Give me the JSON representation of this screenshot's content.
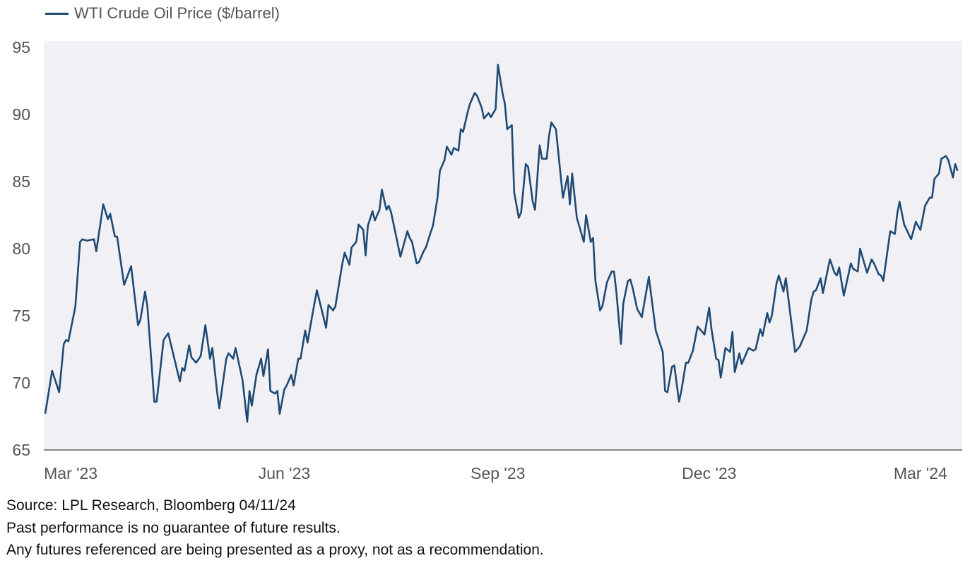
{
  "chart_data": {
    "type": "line",
    "title": "",
    "xlabel": "",
    "ylabel": "",
    "x_unit": "days from start of Mar 2023",
    "xlim": [
      -11.6,
      384
    ],
    "ylim": [
      65,
      95
    ],
    "grid": false,
    "legend_position": "top-left",
    "y_ticks": [
      95,
      90,
      85,
      80,
      75,
      70,
      65
    ],
    "x_ticks": [
      {
        "value": 0,
        "label": "Mar '23"
      },
      {
        "value": 92,
        "label": "Jun '23"
      },
      {
        "value": 184,
        "label": "Sep '23"
      },
      {
        "value": 275,
        "label": "Dec '23"
      },
      {
        "value": 366,
        "label": "Mar '24"
      }
    ],
    "series": [
      {
        "name": "WTI Crude Oil Price ($/barrel)",
        "color": "#1f4a73",
        "x": [
          -11,
          -8,
          -5,
          -3,
          -2,
          -1,
          2,
          4,
          5,
          7,
          10,
          11,
          14,
          16,
          17,
          19,
          20,
          23,
          26,
          29,
          30,
          32,
          33,
          36,
          37,
          40,
          42,
          47,
          48,
          49,
          51,
          52,
          54,
          56,
          58,
          60,
          61,
          63,
          64,
          67,
          68,
          70,
          71,
          74,
          76,
          77,
          78,
          80,
          82,
          83,
          85,
          86,
          88,
          89,
          90,
          92,
          93,
          95,
          96,
          98,
          99,
          101,
          102,
          104,
          106,
          110,
          111,
          113,
          114,
          117,
          118,
          120,
          121,
          123,
          124,
          126,
          127,
          128,
          130,
          131,
          133,
          134,
          136,
          137,
          138,
          142,
          145,
          146,
          147,
          149,
          150,
          152,
          153,
          155,
          156,
          158,
          159,
          161,
          162,
          164,
          165,
          167,
          168,
          169,
          171,
          172,
          174,
          175,
          177,
          178,
          180,
          181,
          183,
          184,
          186,
          187,
          188,
          190,
          191,
          193,
          194,
          196,
          197,
          199,
          200,
          202,
          203,
          205,
          206,
          207,
          209,
          211,
          212,
          214,
          215,
          216,
          218,
          221,
          222,
          224,
          225,
          226,
          228,
          229,
          231,
          233,
          234,
          235,
          237,
          238,
          240,
          241,
          242,
          244,
          246,
          249,
          252,
          255,
          256,
          257,
          259,
          260,
          262,
          263,
          265,
          266,
          268,
          270,
          273,
          275,
          276,
          278,
          279,
          280,
          282,
          284,
          285,
          286,
          288,
          289,
          292,
          294,
          295,
          297,
          298,
          300,
          301,
          302,
          304,
          305,
          307,
          308,
          312,
          314,
          317,
          319,
          320,
          321,
          323,
          324,
          327,
          329,
          330,
          331,
          333,
          336,
          337,
          339,
          340,
          342,
          343,
          345,
          346,
          348,
          349,
          350,
          353,
          355,
          356,
          357,
          359,
          362,
          364,
          366,
          368,
          370,
          371,
          372,
          374,
          375,
          377,
          378,
          380,
          381,
          382
        ],
        "values": [
          67.7,
          70.9,
          69.3,
          72.9,
          73.2,
          73.1,
          75.7,
          80.5,
          80.7,
          80.6,
          80.7,
          79.8,
          83.3,
          82.2,
          82.6,
          80.9,
          80.9,
          77.3,
          78.7,
          74.3,
          74.7,
          76.8,
          75.7,
          68.6,
          68.6,
          73.2,
          73.7,
          70.1,
          71.1,
          70.9,
          72.8,
          71.9,
          71.5,
          72.0,
          74.3,
          71.8,
          72.6,
          69.4,
          68.1,
          71.8,
          72.2,
          71.8,
          72.6,
          70.2,
          67.1,
          69.4,
          68.3,
          70.6,
          71.8,
          70.5,
          72.5,
          69.4,
          69.2,
          69.4,
          67.7,
          69.5,
          69.8,
          70.6,
          69.8,
          71.8,
          71.8,
          73.9,
          73.0,
          75.0,
          76.9,
          74.1,
          75.8,
          75.4,
          75.7,
          78.9,
          79.7,
          78.8,
          80.1,
          80.5,
          81.8,
          81.4,
          79.5,
          81.7,
          82.8,
          82.1,
          82.9,
          84.4,
          82.9,
          83.2,
          82.7,
          79.4,
          81.3,
          80.8,
          80.5,
          78.9,
          79.0,
          79.8,
          80.1,
          81.2,
          81.7,
          83.8,
          85.8,
          86.6,
          87.6,
          87.0,
          87.5,
          87.3,
          88.9,
          88.7,
          90.2,
          90.8,
          91.6,
          91.4,
          90.5,
          89.7,
          90.1,
          89.8,
          90.4,
          93.7,
          91.6,
          90.8,
          88.9,
          89.2,
          84.2,
          82.3,
          82.7,
          86.3,
          86.1,
          83.5,
          82.9,
          87.7,
          86.7,
          86.7,
          88.4,
          89.4,
          88.9,
          85.5,
          83.8,
          85.4,
          83.3,
          85.6,
          82.3,
          80.5,
          82.5,
          80.5,
          80.8,
          77.6,
          75.4,
          75.7,
          77.5,
          78.3,
          78.3,
          76.8,
          72.9,
          75.9,
          77.6,
          77.7,
          77.1,
          75.5,
          74.9,
          77.9,
          73.9,
          72.3,
          69.4,
          69.3,
          71.2,
          71.3,
          68.6,
          69.4,
          71.5,
          71.5,
          72.4,
          74.2,
          73.6,
          75.6,
          74.0,
          71.8,
          71.7,
          70.4,
          72.6,
          72.3,
          73.8,
          70.8,
          72.2,
          71.4,
          72.6,
          72.4,
          72.5,
          74.0,
          73.5,
          75.2,
          74.5,
          75.0,
          77.4,
          78.0,
          76.8,
          77.8,
          72.3,
          72.7,
          73.9,
          76.2,
          76.8,
          76.9,
          77.8,
          76.7,
          79.2,
          78.2,
          78.0,
          78.6,
          76.5,
          78.9,
          78.5,
          78.3,
          80.0,
          78.8,
          78.2,
          79.2,
          78.9,
          78.1,
          78.0,
          77.6,
          81.3,
          81.1,
          82.6,
          83.5,
          81.8,
          80.7,
          82.0,
          81.4,
          83.2,
          83.8,
          83.8,
          85.2,
          85.6,
          86.7,
          86.9,
          86.6,
          85.3,
          86.3,
          85.8
        ]
      }
    ]
  },
  "notes": {
    "source": "Source: LPL Research, Bloomberg 04/11/24",
    "disclaimer1": "Past performance is no guarantee of future results.",
    "disclaimer2": "Any futures referenced are being presented as a proxy, not as a recommendation."
  }
}
